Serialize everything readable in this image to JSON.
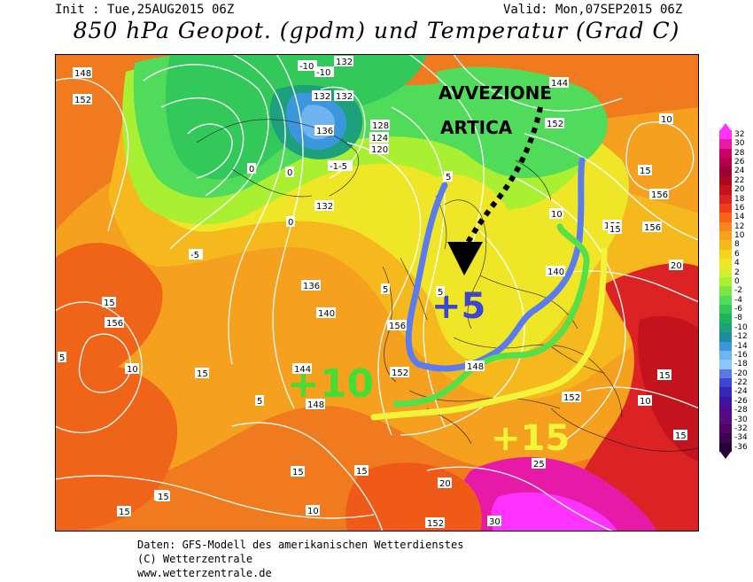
{
  "header": {
    "init": "Init : Tue,25AUG2015 06Z",
    "valid": "Valid: Mon,07SEP2015 06Z",
    "title": "850 hPa Geopot. (gpdm) und Temperatur (Grad C)"
  },
  "annotations": {
    "advection_line1": "AVVEZIONE",
    "advection_line2": "ARTICA",
    "plus5": "+5",
    "plus10": "+10",
    "plus15": "+15"
  },
  "colors": {
    "plus5": "#5b7cf0",
    "plus10": "#55e04a",
    "plus15": "#f2f43a",
    "arrow": "#000000"
  },
  "contour_labels": [
    {
      "text": "148"
    },
    {
      "text": "152"
    },
    {
      "text": "-10"
    },
    {
      "text": "-10"
    },
    {
      "text": "132"
    },
    {
      "text": "132"
    },
    {
      "text": "132"
    },
    {
      "text": "136"
    },
    {
      "text": "-1-5"
    },
    {
      "text": "128"
    },
    {
      "text": "124"
    },
    {
      "text": "120"
    },
    {
      "text": "0"
    },
    {
      "text": "0"
    },
    {
      "text": "132"
    },
    {
      "text": "0"
    },
    {
      "text": "-5"
    },
    {
      "text": "144"
    },
    {
      "text": "152"
    },
    {
      "text": "10"
    },
    {
      "text": "156"
    },
    {
      "text": "15"
    },
    {
      "text": "156"
    },
    {
      "text": "152"
    },
    {
      "text": "15"
    },
    {
      "text": "20"
    },
    {
      "text": "5"
    },
    {
      "text": "136"
    },
    {
      "text": "140"
    },
    {
      "text": "15"
    },
    {
      "text": "156"
    },
    {
      "text": "10"
    },
    {
      "text": "15"
    },
    {
      "text": "144"
    },
    {
      "text": "148"
    },
    {
      "text": "5"
    },
    {
      "text": "156"
    },
    {
      "text": "152"
    },
    {
      "text": "148"
    },
    {
      "text": "152"
    },
    {
      "text": "140"
    },
    {
      "text": "25"
    },
    {
      "text": "20"
    },
    {
      "text": "15"
    },
    {
      "text": "15"
    },
    {
      "text": "15"
    },
    {
      "text": "15"
    },
    {
      "text": "10"
    },
    {
      "text": "152"
    },
    {
      "text": "30"
    },
    {
      "text": "5"
    },
    {
      "text": "5"
    },
    {
      "text": "10"
    },
    {
      "text": "15"
    },
    {
      "text": "15"
    },
    {
      "text": "5"
    },
    {
      "text": "10"
    },
    {
      "text": "15"
    }
  ],
  "colorbar": {
    "labels": [
      "32",
      "30",
      "28",
      "26",
      "24",
      "22",
      "20",
      "18",
      "16",
      "14",
      "12",
      "10",
      "8",
      "6",
      "4",
      "2",
      "0",
      "-2",
      "-4",
      "-6",
      "-8",
      "-10",
      "-12",
      "-14",
      "-16",
      "-18",
      "-20",
      "-22",
      "-24",
      "-26",
      "-28",
      "-30",
      "-32",
      "-34",
      "-36"
    ],
    "colors": [
      "#ff33ff",
      "#e61aa6",
      "#cc0066",
      "#b3004d",
      "#990033",
      "#aa0a1e",
      "#c3141e",
      "#dc2323",
      "#f03c19",
      "#f56419",
      "#f5871e",
      "#f5a01e",
      "#f5b91e",
      "#f5d21e",
      "#f0e628",
      "#d2f032",
      "#aaf032",
      "#7de646",
      "#50dc5a",
      "#32c85a",
      "#1eb45a",
      "#1ea07d",
      "#1e8ca0",
      "#3c96dc",
      "#6eb4f0",
      "#8cc8f5",
      "#5a78e6",
      "#3c46d2",
      "#3228b4",
      "#3c14a0",
      "#500a8c",
      "#5a0a78",
      "#500564",
      "#3c0550",
      "#28003c"
    ]
  },
  "footer": {
    "line1": "Daten: GFS-Modell des amerikanischen Wetterdienstes",
    "line2": "(C) Wetterzentrale",
    "line3": "www.wetterzentrale.de"
  }
}
